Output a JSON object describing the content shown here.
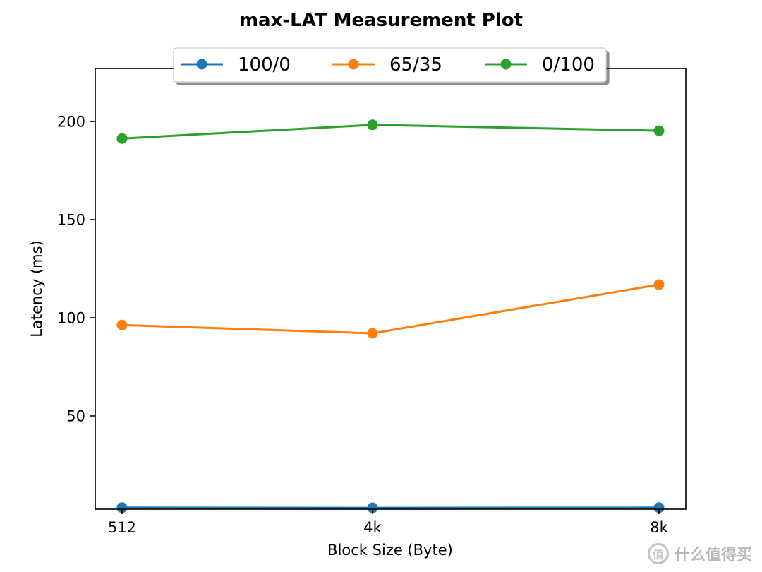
{
  "chart_data": {
    "type": "line",
    "title": "max-LAT Measurement Plot",
    "xlabel": "Block Size (Byte)",
    "ylabel": "Latency (ms)",
    "categories": [
      "512",
      "4k",
      "8k"
    ],
    "yticks": [
      50,
      100,
      150,
      200
    ],
    "ylim": [
      2.5,
      227
    ],
    "grid": false,
    "legend_position": "top-center",
    "series": [
      {
        "name": "100/0",
        "values": [
          3.3,
          3.2,
          3.3
        ],
        "color": "#1f77b4"
      },
      {
        "name": "65/35",
        "values": [
          96.3,
          92.1,
          116.9
        ],
        "color": "#ff7f0e"
      },
      {
        "name": "0/100",
        "values": [
          191.3,
          198.3,
          195.3
        ],
        "color": "#2ca02c"
      }
    ]
  },
  "watermark": {
    "icon": "值",
    "text": "什么值得买"
  }
}
